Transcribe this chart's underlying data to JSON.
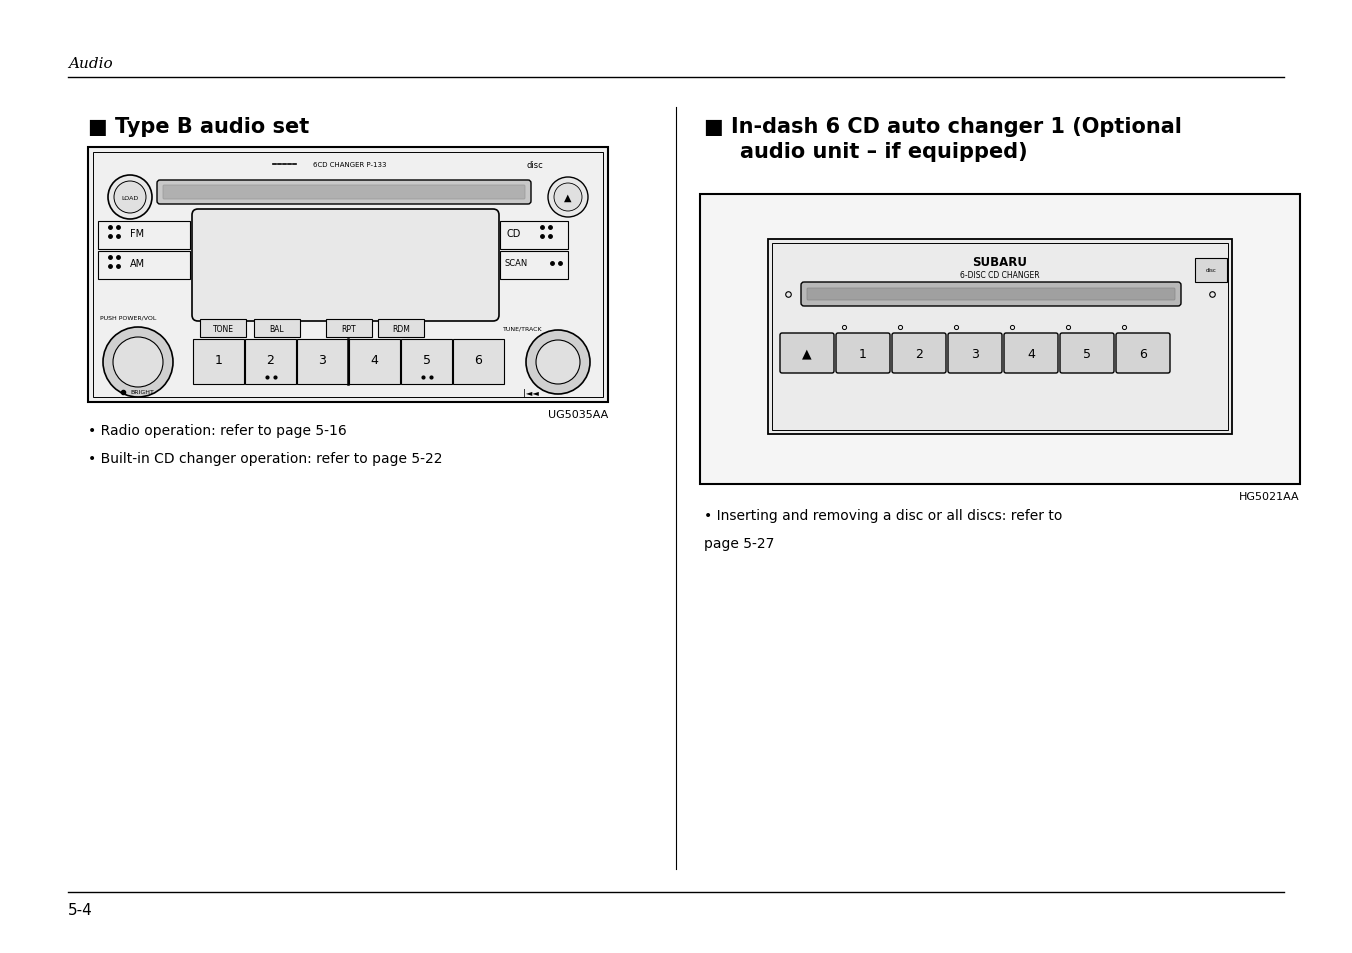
{
  "page_bg": "#ffffff",
  "header_italic": "Audio",
  "left_title": "■ Type B audio set",
  "right_title_line1": "■ In-dash 6 CD auto changer 1 (Optional",
  "right_title_line2": "audio unit – if equipped)",
  "left_caption1": "• Radio operation: refer to page 5-16",
  "left_caption2": "• Built-in CD changer operation: refer to page 5-22",
  "right_caption1": "• Inserting and removing a disc or all discs: refer to",
  "right_caption2": "page 5-27",
  "left_img_code": "UG5035AA",
  "right_img_code": "HG5021AA",
  "footer_text": "5-4"
}
